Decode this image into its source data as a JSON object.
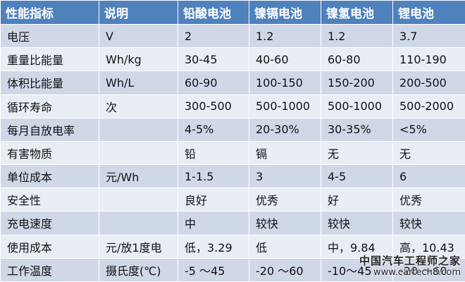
{
  "table": {
    "headers": [
      "性能指标",
      "说明",
      "铅酸电池",
      "镍镉电池",
      "镍氢电池",
      "锂电池"
    ],
    "rows": [
      [
        "电压",
        "V",
        "2",
        "1.2",
        "1.2",
        "3.7"
      ],
      [
        "重量比能量",
        "Wh/kg",
        "30-45",
        "40-60",
        "60-80",
        "110-190"
      ],
      [
        "体积比能量",
        "Wh/L",
        "60-90",
        "100-150",
        "150-200",
        "200-500"
      ],
      [
        "循环寿命",
        "次",
        "300-500",
        "500-1000",
        "500-1000",
        "500-2000"
      ],
      [
        "每月自放电率",
        "",
        "4-5%",
        "20-30%",
        "30-35%",
        "<5%"
      ],
      [
        "有害物质",
        "",
        "铅",
        "镉",
        "无",
        "无"
      ],
      [
        "单位成本",
        "元/Wh",
        "1-1.5",
        "3",
        "4-5",
        "6"
      ],
      [
        "安全性",
        "",
        "良好",
        "优秀",
        "好",
        "优秀"
      ],
      [
        "充电速度",
        "",
        "中",
        "较快",
        "较快",
        "较快"
      ],
      [
        "使用成本",
        "元/放1度电",
        "低，3.29",
        "低",
        "中，9.84",
        "高，10.43"
      ],
      [
        "工作温度",
        "摄氏度(℃)",
        "-5 ～45",
        "-20 ～60",
        "-10～45",
        "-20 ～60"
      ]
    ]
  },
  "watermark": {
    "name": "中国汽车工程师之家",
    "url": "www.cartech8.com"
  },
  "colors": {
    "header_bg": "#4f81bd",
    "row_dark": "#d0d8e8",
    "row_light": "#e9edf4"
  }
}
